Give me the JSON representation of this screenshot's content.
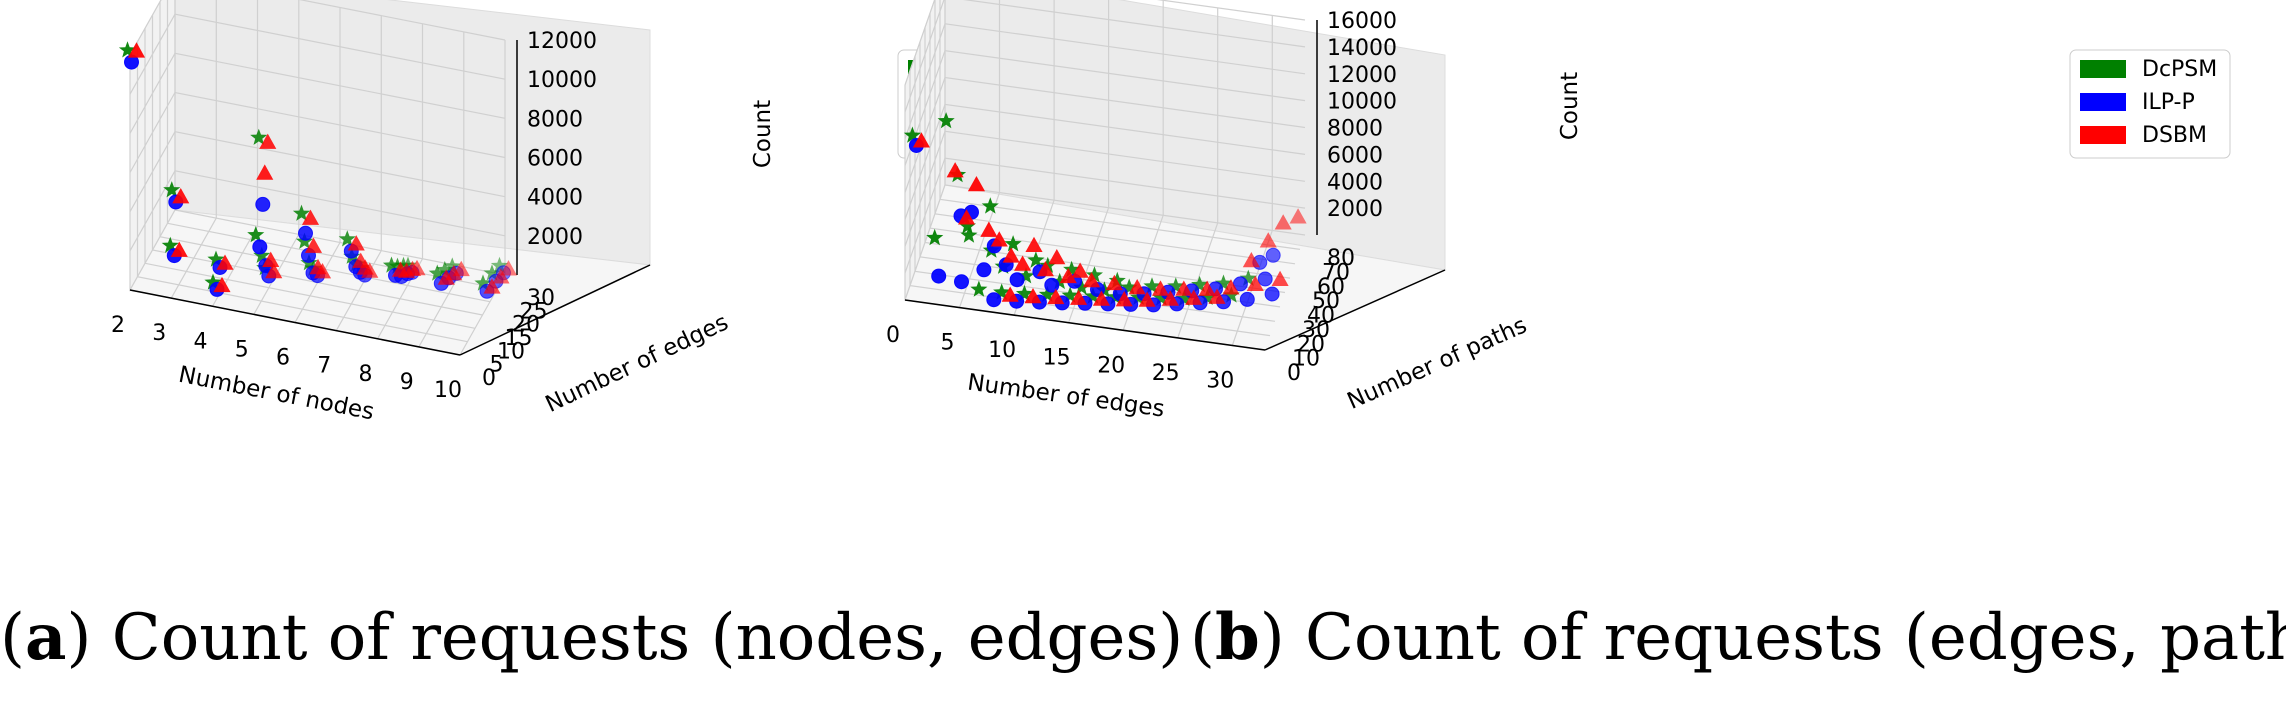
{
  "legend": [
    {
      "name": "DcPSM",
      "color": "#008000"
    },
    {
      "name": "ILP-P",
      "color": "#0000ff"
    },
    {
      "name": "DSBM",
      "color": "#ff0000"
    }
  ],
  "captions": [
    {
      "label": "a",
      "text": "Count of requests (nodes, edges)"
    },
    {
      "label": "b",
      "text": "Count of requests (edges, paths)"
    }
  ],
  "chart_data": [
    {
      "type": "scatter3d",
      "xlabel": "Number of nodes",
      "ylabel": "Number of edges",
      "zlabel": "Count",
      "xlim": [
        2,
        10
      ],
      "ylim": [
        0,
        30
      ],
      "zlim": [
        0,
        12000
      ],
      "xticks": [
        "2",
        "3",
        "4",
        "5",
        "6",
        "7",
        "8",
        "9",
        "10"
      ],
      "yticks": [
        "0",
        "5",
        "10",
        "15",
        "20",
        "25",
        "30"
      ],
      "zticks": [
        "2000",
        "4000",
        "6000",
        "8000",
        "10000",
        "12000"
      ],
      "series": [
        {
          "name": "DcPSM",
          "marker": "star",
          "points": [
            [
              2,
              1,
              11800
            ],
            [
              3,
              3,
              4800
            ],
            [
              3,
              2,
              2100
            ],
            [
              4,
              5,
              1400
            ],
            [
              4,
              3,
              500
            ],
            [
              5,
              6,
              7900
            ],
            [
              5,
              4,
              3200
            ],
            [
              5,
              8,
              1600
            ],
            [
              5,
              10,
              700
            ],
            [
              6,
              7,
              4300
            ],
            [
              6,
              9,
              2600
            ],
            [
              6,
              12,
              1100
            ],
            [
              6,
              15,
              400
            ],
            [
              7,
              10,
              3000
            ],
            [
              7,
              13,
              1700
            ],
            [
              7,
              16,
              900
            ],
            [
              7,
              19,
              300
            ],
            [
              8,
              12,
              1800
            ],
            [
              8,
              16,
              1200
            ],
            [
              8,
              20,
              700
            ],
            [
              8,
              23,
              300
            ],
            [
              9,
              15,
              1400
            ],
            [
              9,
              20,
              900
            ],
            [
              9,
              25,
              400
            ],
            [
              10,
              18,
              900
            ],
            [
              10,
              24,
              600
            ],
            [
              10,
              29,
              300
            ]
          ]
        },
        {
          "name": "ILP-P",
          "marker": "circle",
          "points": [
            [
              2,
              1,
              11500
            ],
            [
              3,
              3,
              4500
            ],
            [
              3,
              2,
              1900
            ],
            [
              4,
              5,
              1300
            ],
            [
              4,
              3,
              450
            ],
            [
              5,
              6,
              4800
            ],
            [
              5,
              4,
              2900
            ],
            [
              5,
              8,
              1400
            ],
            [
              5,
              10,
              600
            ],
            [
              6,
              7,
              3600
            ],
            [
              6,
              9,
              2200
            ],
            [
              6,
              12,
              900
            ],
            [
              6,
              15,
              350
            ],
            [
              7,
              10,
              2700
            ],
            [
              7,
              13,
              1500
            ],
            [
              7,
              16,
              800
            ],
            [
              7,
              19,
              250
            ],
            [
              8,
              12,
              1600
            ],
            [
              8,
              16,
              1000
            ],
            [
              8,
              20,
              600
            ],
            [
              8,
              23,
              250
            ],
            [
              9,
              15,
              1200
            ],
            [
              9,
              20,
              800
            ],
            [
              9,
              25,
              350
            ],
            [
              10,
              18,
              800
            ],
            [
              10,
              24,
              500
            ],
            [
              10,
              29,
              250
            ]
          ]
        },
        {
          "name": "DSBM",
          "marker": "triangle",
          "points": [
            [
              2,
              1,
              11900
            ],
            [
              3,
              3,
              4600
            ],
            [
              3,
              2,
              2000
            ],
            [
              4,
              5,
              1350
            ],
            [
              4,
              3,
              480
            ],
            [
              5,
              6,
              7800
            ],
            [
              5,
              4,
              6500
            ],
            [
              5,
              8,
              1500
            ],
            [
              5,
              10,
              650
            ],
            [
              6,
              7,
              4200
            ],
            [
              6,
              9,
              2500
            ],
            [
              6,
              12,
              1000
            ],
            [
              6,
              15,
              380
            ],
            [
              7,
              10,
              2900
            ],
            [
              7,
              13,
              1600
            ],
            [
              7,
              16,
              850
            ],
            [
              7,
              19,
              280
            ],
            [
              8,
              12,
              1700
            ],
            [
              8,
              16,
              1100
            ],
            [
              8,
              20,
              650
            ],
            [
              8,
              23,
              280
            ],
            [
              9,
              15,
              1300
            ],
            [
              9,
              20,
              850
            ],
            [
              9,
              25,
              380
            ],
            [
              10,
              18,
              850
            ],
            [
              10,
              24,
              550
            ],
            [
              10,
              29,
              280
            ]
          ]
        }
      ]
    },
    {
      "type": "scatter3d",
      "xlabel": "Number of edges",
      "ylabel": "Number of paths",
      "zlabel": "Count",
      "xlim": [
        0,
        33
      ],
      "ylim": [
        0,
        80
      ],
      "zlim": [
        0,
        16000
      ],
      "xticks": [
        "0",
        "5",
        "10",
        "15",
        "20",
        "25",
        "30"
      ],
      "yticks": [
        "0",
        "10",
        "20",
        "30",
        "40",
        "50",
        "60",
        "70",
        "80"
      ],
      "zticks": [
        "2000",
        "4000",
        "6000",
        "8000",
        "10000",
        "12000",
        "14000",
        "16000"
      ],
      "series": [
        {
          "name": "DcPSM",
          "marker": "star",
          "points": [
            [
              1,
              1,
              11800
            ],
            [
              3,
              2,
              4300
            ],
            [
              4,
              3,
              13000
            ],
            [
              5,
              4,
              9000
            ],
            [
              6,
              2,
              5500
            ],
            [
              6,
              5,
              4500
            ],
            [
              8,
              4,
              7000
            ],
            [
              8,
              6,
              3500
            ],
            [
              9,
              8,
              2200
            ],
            [
              10,
              6,
              4200
            ],
            [
              11,
              10,
              1500
            ],
            [
              12,
              8,
              3000
            ],
            [
              13,
              10,
              2500
            ],
            [
              14,
              12,
              1200
            ],
            [
              15,
              14,
              2000
            ],
            [
              16,
              12,
              1000
            ],
            [
              17,
              16,
              1600
            ],
            [
              18,
              14,
              800
            ],
            [
              19,
              18,
              1200
            ],
            [
              20,
              20,
              600
            ],
            [
              22,
              22,
              700
            ],
            [
              24,
              26,
              500
            ],
            [
              26,
              30,
              400
            ],
            [
              28,
              34,
              300
            ],
            [
              30,
              40,
              250
            ],
            [
              7,
              3,
              800
            ],
            [
              9,
              5,
              600
            ],
            [
              11,
              7,
              500
            ],
            [
              13,
              9,
              450
            ],
            [
              15,
              11,
              400
            ],
            [
              17,
              13,
              350
            ],
            [
              19,
              15,
              300
            ],
            [
              21,
              17,
              280
            ],
            [
              23,
              19,
              250
            ],
            [
              25,
              21,
              220
            ],
            [
              27,
              24,
              200
            ],
            [
              29,
              28,
              180
            ]
          ]
        },
        {
          "name": "ILP-P",
          "marker": "circle",
          "points": [
            [
              1,
              1,
              11500
            ],
            [
              3,
              2,
              1900
            ],
            [
              5,
              3,
              6500
            ],
            [
              5,
              4,
              1500
            ],
            [
              6,
              2,
              7000
            ],
            [
              7,
              5,
              2500
            ],
            [
              8,
              4,
              4500
            ],
            [
              9,
              6,
              3000
            ],
            [
              10,
              6,
              2000
            ],
            [
              12,
              8,
              2600
            ],
            [
              13,
              10,
              1500
            ],
            [
              15,
              12,
              1800
            ],
            [
              17,
              14,
              1200
            ],
            [
              19,
              16,
              900
            ],
            [
              21,
              20,
              700
            ],
            [
              23,
              24,
              600
            ],
            [
              25,
              28,
              500
            ],
            [
              27,
              32,
              450
            ],
            [
              29,
              38,
              400
            ],
            [
              31,
              44,
              350
            ],
            [
              8,
              3,
              600
            ],
            [
              10,
              5,
              500
            ],
            [
              12,
              7,
              450
            ],
            [
              14,
              9,
              400
            ],
            [
              16,
              11,
              380
            ],
            [
              18,
              13,
              350
            ],
            [
              20,
              15,
              320
            ],
            [
              22,
              17,
              300
            ],
            [
              24,
              20,
              280
            ],
            [
              26,
              23,
              260
            ],
            [
              28,
              26,
              240
            ],
            [
              30,
              30,
              220
            ],
            [
              32,
              36,
              200
            ],
            [
              30,
              55,
              300
            ],
            [
              31,
              60,
              400
            ]
          ]
        },
        {
          "name": "DSBM",
          "marker": "triangle",
          "points": [
            [
              1,
              1,
              11600
            ],
            [
              4,
              3,
              9500
            ],
            [
              5,
              4,
              6000
            ],
            [
              6,
              2,
              8800
            ],
            [
              7,
              5,
              5200
            ],
            [
              8,
              4,
              4700
            ],
            [
              9,
              6,
              3400
            ],
            [
              10,
              7,
              2800
            ],
            [
              11,
              8,
              4200
            ],
            [
              12,
              9,
              2400
            ],
            [
              13,
              10,
              3300
            ],
            [
              14,
              11,
              1900
            ],
            [
              15,
              13,
              2200
            ],
            [
              16,
              14,
              1500
            ],
            [
              18,
              16,
              1300
            ],
            [
              20,
              18,
              1000
            ],
            [
              22,
              21,
              800
            ],
            [
              24,
              24,
              700
            ],
            [
              26,
              27,
              600
            ],
            [
              28,
              31,
              500
            ],
            [
              30,
              36,
              450
            ],
            [
              32,
              42,
              400
            ],
            [
              31,
              70,
              1500
            ],
            [
              32,
              78,
              1200
            ],
            [
              30,
              62,
              900
            ],
            [
              29,
              50,
              600
            ],
            [
              9,
              4,
              700
            ],
            [
              11,
              6,
              600
            ],
            [
              13,
              8,
              550
            ],
            [
              15,
              10,
              500
            ],
            [
              17,
              12,
              450
            ],
            [
              19,
              14,
              420
            ],
            [
              21,
              16,
              400
            ],
            [
              23,
              19,
              380
            ],
            [
              25,
              22,
              350
            ],
            [
              27,
              25,
              330
            ]
          ]
        }
      ]
    }
  ]
}
